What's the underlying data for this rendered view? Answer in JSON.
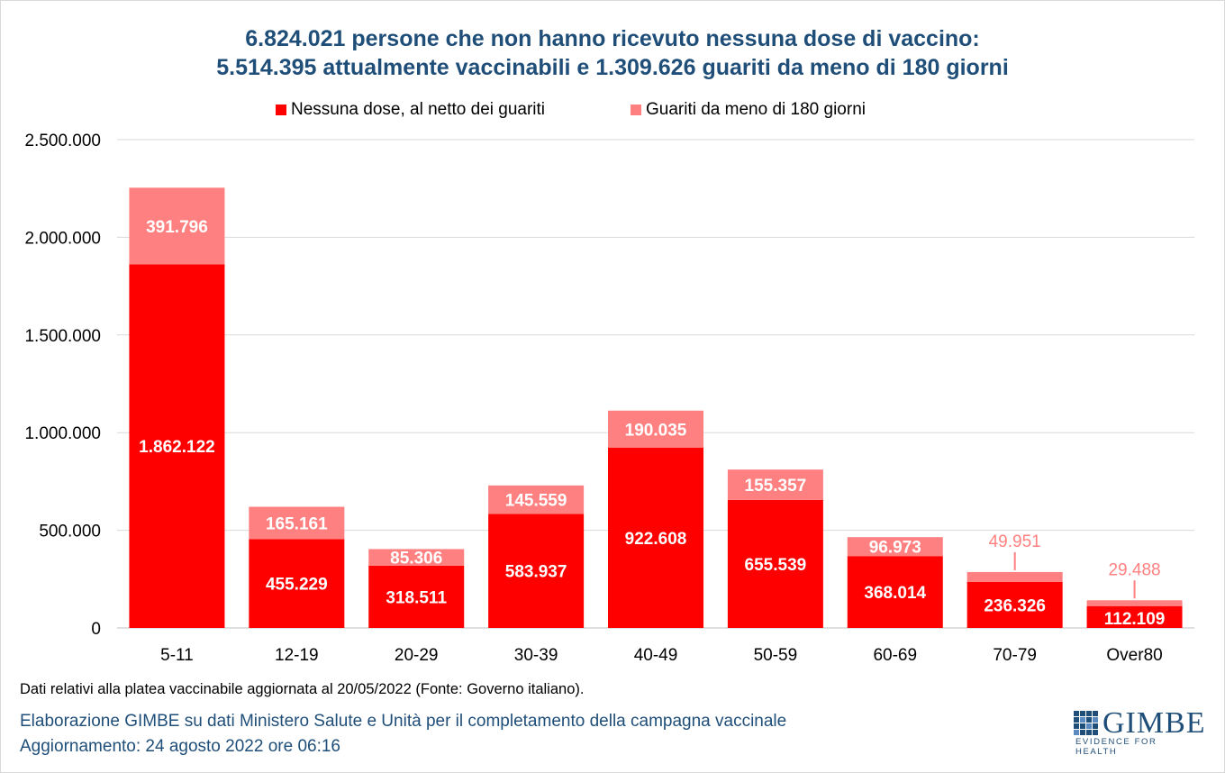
{
  "chart_data": {
    "type": "bar",
    "stacked": true,
    "title_line1": "6.824.021 persone che non hanno ricevuto nessuna dose di vaccino:",
    "title_line2": "5.514.395 attualmente vaccinabili e 1.309.626 guariti da meno di 180 giorni",
    "xlabel": "",
    "ylabel": "",
    "ylim": [
      0,
      2500000
    ],
    "yticks": [
      0,
      500000,
      1000000,
      1500000,
      2000000,
      2500000
    ],
    "ytick_labels": [
      "0",
      "500.000",
      "1.000.000",
      "1.500.000",
      "2.000.000",
      "2.500.000"
    ],
    "grid": true,
    "legend_position": "top",
    "categories": [
      "5-11",
      "12-19",
      "20-29",
      "30-39",
      "40-49",
      "50-59",
      "60-69",
      "70-79",
      "Over80"
    ],
    "series": [
      {
        "name": "Nessuna dose, al netto dei guariti",
        "color": "#ff0000",
        "values": [
          1862122,
          455229,
          318511,
          583937,
          922608,
          655539,
          368014,
          236326,
          112109
        ],
        "labels": [
          "1.862.122",
          "455.229",
          "318.511",
          "583.937",
          "922.608",
          "655.539",
          "368.014",
          "236.326",
          "112.109"
        ]
      },
      {
        "name": "Guariti da meno di 180 giorni",
        "color": "#ff8080",
        "values": [
          391796,
          165161,
          85306,
          145559,
          190035,
          155357,
          96973,
          49951,
          29488
        ],
        "labels": [
          "391.796",
          "165.161",
          "85.306",
          "145.559",
          "190.035",
          "155.357",
          "96.973",
          "49.951",
          "29.488"
        ]
      }
    ]
  },
  "footer": {
    "note": "Dati relativi alla platea vaccinabile aggiornata al 20/05/2022 (Fonte: Governo italiano).",
    "source": "Elaborazione GIMBE su dati Ministero Salute e Unità per il completamento della campagna vaccinale",
    "updated": "Aggiornamento: 24 agosto 2022 ore 06:16"
  },
  "logo": {
    "name": "GIMBE",
    "tagline": "EVIDENCE FOR HEALTH",
    "color": "#1f4e79"
  }
}
